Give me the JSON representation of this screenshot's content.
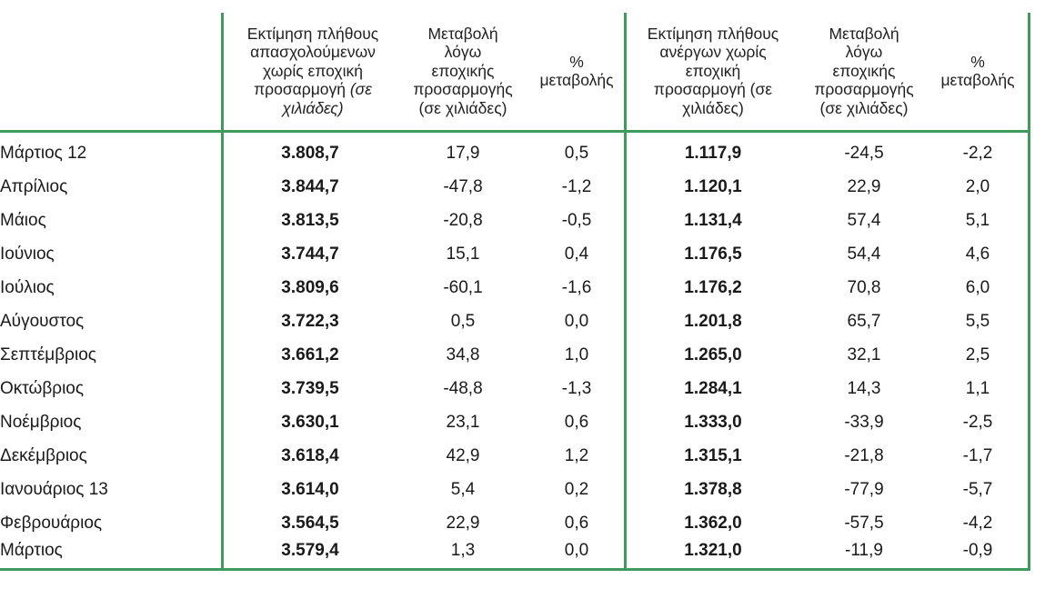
{
  "headers": {
    "employed_est": [
      "Εκτίμηση πλήθους",
      "απασχολούμενων",
      "χωρίς εποχική"
    ],
    "employed_est_italic_prefix": "προσαρμογή ",
    "employed_est_italic": "(σε",
    "employed_est_italic2": "χιλιάδες)",
    "employed_change": [
      "Μεταβολή",
      "λόγω",
      "εποχικής",
      "προσαρμογής",
      "(σε χιλιάδες)"
    ],
    "employed_pct": [
      "%",
      "μεταβολής"
    ],
    "unemployed_est": [
      "Εκτίμηση πλήθους",
      "ανέργων χωρίς",
      "εποχική",
      "προσαρμογή (σε",
      "χιλιάδες)"
    ],
    "unemployed_change": [
      "Μεταβολή",
      "λόγω",
      "εποχικής",
      "προσαρμογής",
      "(σε χιλιάδες)"
    ],
    "unemployed_pct": [
      "%",
      "μεταβολής"
    ]
  },
  "rows": [
    {
      "month": "Μάρτιος 12",
      "emp": "3.808,7",
      "emp_chg": "17,9",
      "emp_pct": "0,5",
      "unemp": "1.117,9",
      "unemp_chg": "-24,5",
      "unemp_pct": "-2,2"
    },
    {
      "month": "Απρίλιος",
      "emp": "3.844,7",
      "emp_chg": "-47,8",
      "emp_pct": "-1,2",
      "unemp": "1.120,1",
      "unemp_chg": "22,9",
      "unemp_pct": "2,0"
    },
    {
      "month": "Μάιος",
      "emp": "3.813,5",
      "emp_chg": "-20,8",
      "emp_pct": "-0,5",
      "unemp": "1.131,4",
      "unemp_chg": "57,4",
      "unemp_pct": "5,1"
    },
    {
      "month": "Ιούνιος",
      "emp": "3.744,7",
      "emp_chg": "15,1",
      "emp_pct": "0,4",
      "unemp": "1.176,5",
      "unemp_chg": "54,4",
      "unemp_pct": "4,6"
    },
    {
      "month": "Ιούλιος",
      "emp": "3.809,6",
      "emp_chg": "-60,1",
      "emp_pct": "-1,6",
      "unemp": "1.176,2",
      "unemp_chg": "70,8",
      "unemp_pct": "6,0"
    },
    {
      "month": "Αύγουστος",
      "emp": "3.722,3",
      "emp_chg": "0,5",
      "emp_pct": "0,0",
      "unemp": "1.201,8",
      "unemp_chg": "65,7",
      "unemp_pct": "5,5"
    },
    {
      "month": "Σεπτέμβριος",
      "emp": "3.661,2",
      "emp_chg": "34,8",
      "emp_pct": "1,0",
      "unemp": "1.265,0",
      "unemp_chg": "32,1",
      "unemp_pct": "2,5"
    },
    {
      "month": "Οκτώβριος",
      "emp": "3.739,5",
      "emp_chg": "-48,8",
      "emp_pct": "-1,3",
      "unemp": "1.284,1",
      "unemp_chg": "14,3",
      "unemp_pct": "1,1"
    },
    {
      "month": "Νοέμβριος",
      "emp": "3.630,1",
      "emp_chg": "23,1",
      "emp_pct": "0,6",
      "unemp": "1.333,0",
      "unemp_chg": "-33,9",
      "unemp_pct": "-2,5"
    },
    {
      "month": "Δεκέμβριος",
      "emp": "3.618,4",
      "emp_chg": "42,9",
      "emp_pct": "1,2",
      "unemp": "1.315,1",
      "unemp_chg": "-21,8",
      "unemp_pct": "-1,7"
    },
    {
      "month": "Ιανουάριος 13",
      "emp": "3.614,0",
      "emp_chg": "5,4",
      "emp_pct": "0,2",
      "unemp": "1.378,8",
      "unemp_chg": "-77,9",
      "unemp_pct": "-5,7"
    },
    {
      "month": "Φεβρουάριος",
      "emp": "3.564,5",
      "emp_chg": "22,9",
      "emp_pct": "0,6",
      "unemp": "1.362,0",
      "unemp_chg": "-57,5",
      "unemp_pct": "-4,2"
    },
    {
      "month": "Μάρτιος",
      "emp": "3.579,4",
      "emp_chg": "1,3",
      "emp_pct": "0,0",
      "unemp": "1.321,0",
      "unemp_chg": "-11,9",
      "unemp_pct": "-0,9"
    }
  ],
  "colors": {
    "rule": "#3f9a5c",
    "text": "#1a1a1a"
  }
}
